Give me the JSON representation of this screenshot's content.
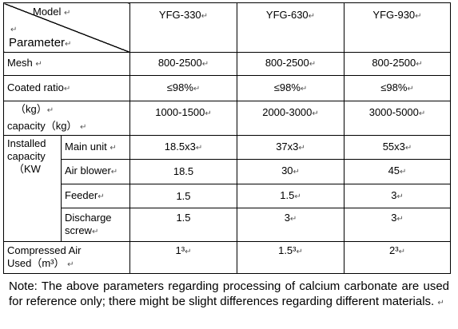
{
  "table": {
    "header": {
      "model_label": "Model",
      "parameter_label": "Parameter",
      "models": [
        "YFG-330",
        "YFG-630",
        "YFG-930"
      ]
    },
    "mark": "↵",
    "rows": {
      "mesh": {
        "label": "Mesh",
        "values": [
          "800-2500",
          "800-2500",
          "800-2500"
        ]
      },
      "coated_ratio": {
        "label": "Coated ratio",
        "values": [
          "≤98%",
          "≤98%",
          "≤98%"
        ]
      },
      "capacity": {
        "label_line1": "（kg）",
        "label_line2": "capacity（kg）",
        "values": [
          "1000-1500",
          "2000-3000",
          "3000-5000"
        ]
      },
      "installed_capacity": {
        "label_line1": "Installed",
        "label_line2": "capacity",
        "label_line3": "（KW",
        "sub_rows": [
          {
            "label": "Main unit",
            "values": [
              "18.5x3",
              "37x3",
              "55x3"
            ]
          },
          {
            "label": "Air blower",
            "values": [
              "18.5",
              "30",
              "45"
            ]
          },
          {
            "label": "Feeder",
            "values": [
              "1.5",
              "1.5",
              "3"
            ]
          },
          {
            "label_line1": "Discharge",
            "label_line2": "screw",
            "values": [
              "1.5",
              "3",
              "3"
            ]
          }
        ]
      },
      "compressed_air": {
        "label_line1": "Compressed Air",
        "label_line2": "Used（m³）",
        "values": [
          "1³",
          "1.5³",
          "2³"
        ]
      }
    }
  },
  "note": "Note: The above parameters regarding processing of calcium carbonate are used for reference only; there might be slight differences regarding different materials."
}
